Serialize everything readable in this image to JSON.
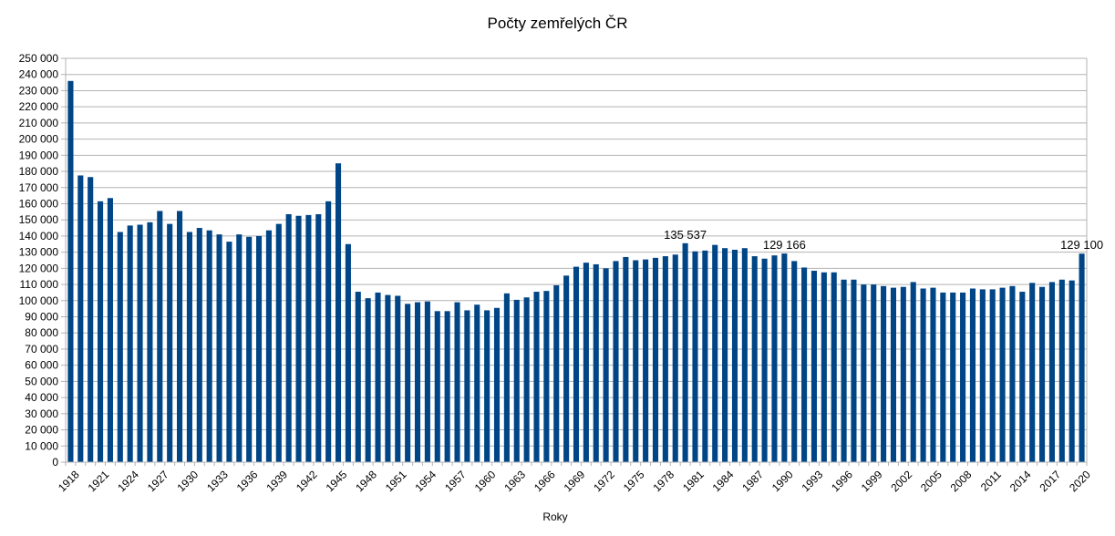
{
  "chart_data": {
    "type": "bar",
    "title": "Počty zemřelých ČR",
    "xlabel": "Roky",
    "ylabel": "",
    "ylim": [
      0,
      250000
    ],
    "ytick_step": 10000,
    "ytick_labels": [
      "0",
      "10 000",
      "20 000",
      "30 000",
      "40 000",
      "50 000",
      "60 000",
      "70 000",
      "80 000",
      "90 000",
      "100 000",
      "110 000",
      "120 000",
      "130 000",
      "140 000",
      "150 000",
      "160 000",
      "170 000",
      "180 000",
      "190 000",
      "200 000",
      "210 000",
      "220 000",
      "230 000",
      "240 000",
      "250 000"
    ],
    "grid": true,
    "legend": "none",
    "bar_color": "#004586",
    "categories": [
      1918,
      1919,
      1920,
      1921,
      1922,
      1923,
      1924,
      1925,
      1926,
      1927,
      1928,
      1929,
      1930,
      1931,
      1932,
      1933,
      1934,
      1935,
      1936,
      1937,
      1938,
      1939,
      1940,
      1941,
      1942,
      1943,
      1944,
      1945,
      1946,
      1947,
      1948,
      1949,
      1950,
      1951,
      1952,
      1953,
      1954,
      1955,
      1956,
      1957,
      1958,
      1959,
      1960,
      1961,
      1962,
      1963,
      1964,
      1965,
      1966,
      1967,
      1968,
      1969,
      1970,
      1971,
      1972,
      1973,
      1974,
      1975,
      1976,
      1977,
      1978,
      1979,
      1980,
      1981,
      1982,
      1983,
      1984,
      1985,
      1986,
      1987,
      1988,
      1989,
      1990,
      1991,
      1992,
      1993,
      1994,
      1995,
      1996,
      1997,
      1998,
      1999,
      2000,
      2001,
      2002,
      2003,
      2004,
      2005,
      2006,
      2007,
      2008,
      2009,
      2010,
      2011,
      2012,
      2013,
      2014,
      2015,
      2016,
      2017,
      2018,
      2019,
      2020
    ],
    "x_tick_labels": [
      "1918",
      "1921",
      "1924",
      "1927",
      "1930",
      "1933",
      "1936",
      "1939",
      "1942",
      "1945",
      "1948",
      "1951",
      "1954",
      "1957",
      "1960",
      "1963",
      "1966",
      "1969",
      "1972",
      "1975",
      "1978",
      "1981",
      "1984",
      "1987",
      "1990",
      "1993",
      "1996",
      "1999",
      "2002",
      "2005",
      "2008",
      "2011",
      "2014",
      "2017",
      "2020"
    ],
    "values": [
      236000,
      177500,
      176500,
      161500,
      163500,
      142500,
      146500,
      147000,
      148500,
      155500,
      147500,
      155500,
      142500,
      145000,
      143500,
      141000,
      136500,
      141000,
      139500,
      140000,
      143500,
      147500,
      153500,
      152500,
      153000,
      153500,
      161500,
      185000,
      135000,
      105500,
      101500,
      105000,
      103500,
      103000,
      98000,
      99000,
      99500,
      93500,
      93500,
      99000,
      94000,
      97500,
      94000,
      95500,
      104500,
      100500,
      102000,
      105500,
      106000,
      109500,
      115500,
      121000,
      123500,
      122500,
      120000,
      124500,
      127000,
      125000,
      125500,
      126500,
      127500,
      128500,
      135537,
      130500,
      131000,
      134500,
      132500,
      131500,
      132500,
      127500,
      126000,
      128000,
      129166,
      124500,
      120500,
      118500,
      117500,
      117500,
      113000,
      113000,
      110000,
      110000,
      109000,
      108000,
      108500,
      111500,
      107500,
      108000,
      105000,
      105000,
      105000,
      107500,
      107000,
      107000,
      108000,
      109000,
      105500,
      111000,
      108500,
      111500,
      113000,
      112500,
      129100
    ],
    "data_labels": [
      {
        "category": 1980,
        "text": "135 537"
      },
      {
        "category": 1990,
        "text": "129 166"
      },
      {
        "category": 2020,
        "text": "129 100"
      }
    ]
  }
}
